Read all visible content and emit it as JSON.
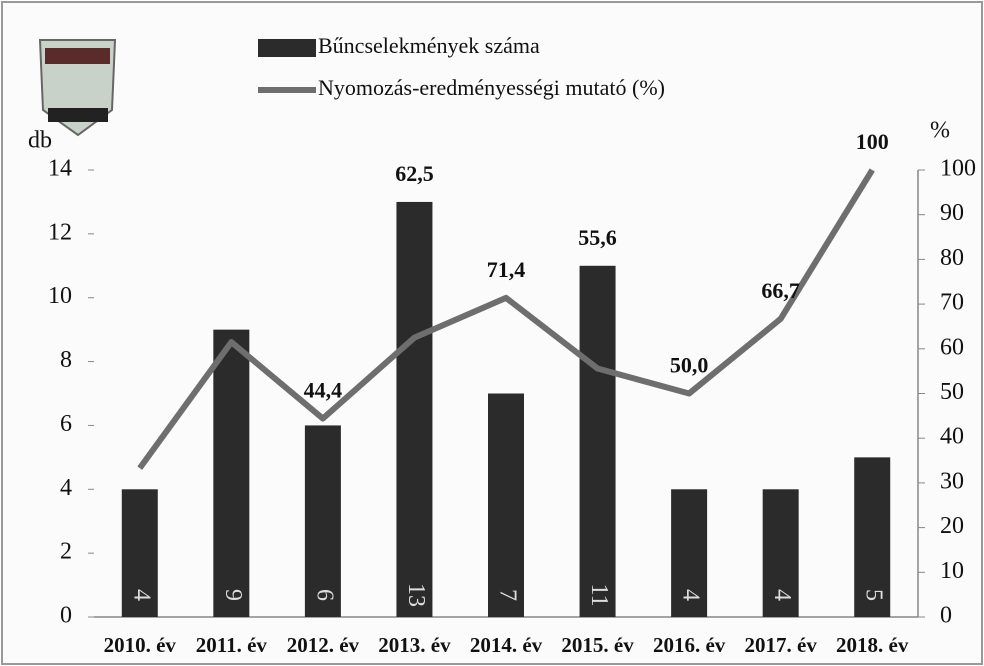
{
  "chart_data": {
    "type": "bar_line",
    "legend": "top",
    "y_label": "db",
    "y2_label": "%",
    "categories": [
      "2010. év",
      "2011. év",
      "2012. év",
      "2013. év",
      "2014. év",
      "2015. év",
      "2016. év",
      "2017. év",
      "2018. év"
    ],
    "series": [
      {
        "name": "Bűncselekmények száma",
        "color": "#2b2b2b",
        "type": "bar",
        "values": [
          4,
          9,
          6,
          13,
          7,
          11,
          4,
          4,
          5
        ]
      },
      {
        "name": "Nyomozás-eredményességi mutató (%)",
        "color": "#6e6e6e",
        "type": "line",
        "axis": "y2",
        "values": [
          33.3,
          61.5,
          44.4,
          62.5,
          71.4,
          55.6,
          50.0,
          66.7,
          100
        ],
        "value_labels": [
          null,
          null,
          "44,4",
          "62,5",
          "71,4",
          "55,6",
          "50,0",
          "66,7",
          "100"
        ]
      }
    ],
    "ylim": [
      0,
      14
    ],
    "yticks": [
      0,
      2,
      4,
      6,
      8,
      10,
      12,
      14
    ],
    "y2lim": [
      0,
      100
    ],
    "y2ticks": [
      0,
      10,
      20,
      30,
      40,
      50,
      60,
      70,
      80,
      90,
      100
    ]
  }
}
